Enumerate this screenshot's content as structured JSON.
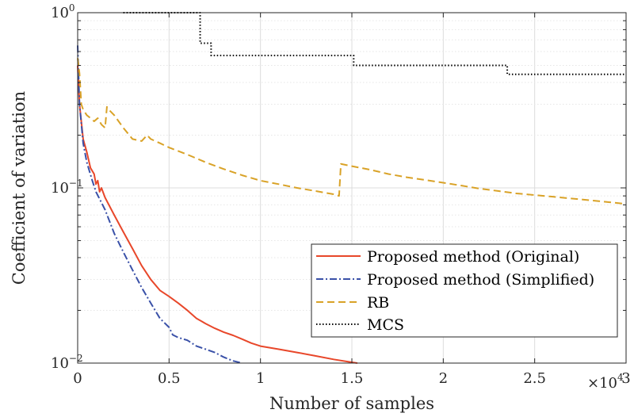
{
  "chart_data": {
    "type": "line",
    "title": "",
    "xlabel": "Number of samples",
    "ylabel": "Coefficient of variation",
    "x_multiplier_label": "×10",
    "x_multiplier_exponent": "4",
    "xlim": [
      0,
      30000
    ],
    "ylim": [
      0.01,
      1
    ],
    "y_scale": "log",
    "x_ticks": [
      0,
      5000,
      10000,
      15000,
      20000,
      25000,
      30000
    ],
    "x_tick_labels": [
      "0",
      "0.5",
      "1",
      "1.5",
      "2",
      "2.5",
      "3"
    ],
    "y_ticks": [
      0.01,
      0.1,
      1
    ],
    "y_tick_labels": [
      {
        "base": "10",
        "exp": "−2"
      },
      {
        "base": "10",
        "exp": "−1"
      },
      {
        "base": "10",
        "exp": "0"
      }
    ],
    "grid": true,
    "legend_position": "bottom-right",
    "series": [
      {
        "name": "Proposed method (Original)",
        "color": "#e8472a",
        "style": "solid",
        "points": [
          [
            0,
            0.5
          ],
          [
            100,
            0.3
          ],
          [
            300,
            0.19
          ],
          [
            500,
            0.16
          ],
          [
            700,
            0.13
          ],
          [
            900,
            0.12
          ],
          [
            1000,
            0.105
          ],
          [
            1100,
            0.11
          ],
          [
            1200,
            0.095
          ],
          [
            1300,
            0.1
          ],
          [
            1500,
            0.088
          ],
          [
            2000,
            0.07
          ],
          [
            2500,
            0.056
          ],
          [
            3000,
            0.045
          ],
          [
            3500,
            0.036
          ],
          [
            4000,
            0.03
          ],
          [
            4500,
            0.026
          ],
          [
            5000,
            0.024
          ],
          [
            5500,
            0.022
          ],
          [
            6000,
            0.02
          ],
          [
            6500,
            0.018
          ],
          [
            7000,
            0.0168
          ],
          [
            7500,
            0.0158
          ],
          [
            8000,
            0.015
          ],
          [
            8500,
            0.0144
          ],
          [
            9000,
            0.0137
          ],
          [
            9500,
            0.013
          ],
          [
            10000,
            0.0125
          ],
          [
            11000,
            0.012
          ],
          [
            12000,
            0.0115
          ],
          [
            13000,
            0.011
          ],
          [
            14000,
            0.0105
          ],
          [
            15000,
            0.0101
          ],
          [
            15300,
            0.01
          ]
        ]
      },
      {
        "name": "Proposed method (Simplified)",
        "color": "#3a51a8",
        "style": "dashdot",
        "points": [
          [
            0,
            0.65
          ],
          [
            100,
            0.3
          ],
          [
            300,
            0.18
          ],
          [
            500,
            0.14
          ],
          [
            800,
            0.11
          ],
          [
            1000,
            0.095
          ],
          [
            1500,
            0.075
          ],
          [
            2000,
            0.055
          ],
          [
            2500,
            0.043
          ],
          [
            3000,
            0.034
          ],
          [
            3500,
            0.027
          ],
          [
            4000,
            0.022
          ],
          [
            4500,
            0.018
          ],
          [
            5000,
            0.016
          ],
          [
            5200,
            0.0145
          ],
          [
            5500,
            0.014
          ],
          [
            6000,
            0.0135
          ],
          [
            6500,
            0.0125
          ],
          [
            7000,
            0.012
          ],
          [
            7500,
            0.0115
          ],
          [
            8000,
            0.0108
          ],
          [
            8500,
            0.0103
          ],
          [
            9000,
            0.01
          ]
        ]
      },
      {
        "name": "RB",
        "color": "#d9a227",
        "style": "dashed",
        "points": [
          [
            0,
            0.55
          ],
          [
            100,
            0.45
          ],
          [
            200,
            0.3
          ],
          [
            300,
            0.28
          ],
          [
            500,
            0.26
          ],
          [
            700,
            0.25
          ],
          [
            900,
            0.24
          ],
          [
            1100,
            0.25
          ],
          [
            1300,
            0.23
          ],
          [
            1500,
            0.22
          ],
          [
            1600,
            0.29
          ],
          [
            1700,
            0.28
          ],
          [
            2000,
            0.26
          ],
          [
            2500,
            0.22
          ],
          [
            3000,
            0.19
          ],
          [
            3500,
            0.185
          ],
          [
            3800,
            0.2
          ],
          [
            4000,
            0.19
          ],
          [
            4500,
            0.18
          ],
          [
            5000,
            0.17
          ],
          [
            6000,
            0.155
          ],
          [
            7000,
            0.14
          ],
          [
            8000,
            0.128
          ],
          [
            9000,
            0.118
          ],
          [
            10000,
            0.11
          ],
          [
            11000,
            0.105
          ],
          [
            12000,
            0.1
          ],
          [
            13000,
            0.096
          ],
          [
            14000,
            0.092
          ],
          [
            14300,
            0.09
          ],
          [
            14400,
            0.137
          ],
          [
            15000,
            0.133
          ],
          [
            16000,
            0.127
          ],
          [
            17000,
            0.12
          ],
          [
            18000,
            0.115
          ],
          [
            19000,
            0.111
          ],
          [
            20000,
            0.107
          ],
          [
            21000,
            0.103
          ],
          [
            22000,
            0.099
          ],
          [
            23000,
            0.096
          ],
          [
            24000,
            0.093
          ],
          [
            25000,
            0.091
          ],
          [
            26000,
            0.089
          ],
          [
            27000,
            0.087
          ],
          [
            28000,
            0.085
          ],
          [
            29000,
            0.083
          ],
          [
            30000,
            0.081
          ]
        ]
      },
      {
        "name": "MCS",
        "color": "#000000",
        "style": "dotted",
        "points": [
          [
            2500,
            1
          ],
          [
            6700,
            1
          ],
          [
            6700,
            0.67
          ],
          [
            7300,
            0.67
          ],
          [
            7300,
            0.57
          ],
          [
            15100,
            0.57
          ],
          [
            15100,
            0.5
          ],
          [
            23500,
            0.5
          ],
          [
            23500,
            0.445
          ],
          [
            30000,
            0.445
          ]
        ]
      }
    ]
  }
}
